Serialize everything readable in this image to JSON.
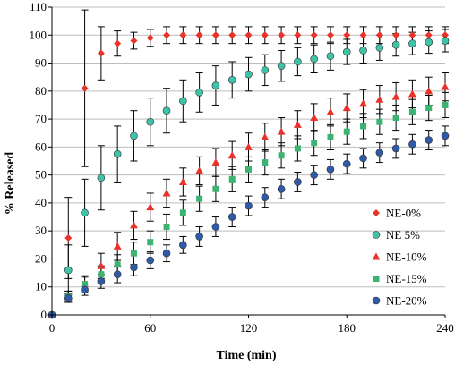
{
  "chart_data": {
    "type": "scatter",
    "xlabel": "Time (min)",
    "ylabel": "% Released",
    "xlim": [
      0,
      240
    ],
    "ylim": [
      0,
      110
    ],
    "xticks": [
      0,
      60,
      120,
      180,
      240
    ],
    "yticks": [
      0,
      10,
      20,
      30,
      40,
      50,
      60,
      70,
      80,
      90,
      100,
      110
    ],
    "grid": "horizontal",
    "legend": "bottom-right",
    "series": [
      {
        "name": "NE-0%",
        "color": "#e8322a",
        "marker": "diamond",
        "x": [
          0,
          10,
          20,
          30,
          40,
          50,
          60,
          70,
          80,
          90,
          100,
          110,
          120,
          130,
          140,
          150,
          160,
          170,
          180,
          190,
          200,
          210,
          220,
          230,
          240
        ],
        "y": [
          0,
          27.5,
          81,
          93.5,
          97,
          98,
          99,
          100,
          100,
          100,
          100,
          100,
          100,
          100,
          100,
          100,
          100,
          100,
          100,
          100,
          100,
          100,
          100,
          100,
          100
        ],
        "err": [
          0,
          14.5,
          28,
          9.5,
          4.5,
          3,
          3,
          3,
          3,
          3,
          3,
          3,
          3,
          3,
          3,
          3,
          3,
          3,
          3,
          3,
          3,
          3,
          3,
          3,
          3
        ]
      },
      {
        "name": "NE 5%",
        "color": "#3cc3a8",
        "marker": "circle",
        "x": [
          0,
          10,
          20,
          30,
          40,
          50,
          60,
          70,
          80,
          90,
          100,
          110,
          120,
          130,
          140,
          150,
          160,
          170,
          180,
          190,
          200,
          210,
          220,
          230,
          240
        ],
        "y": [
          0,
          16,
          36.5,
          49,
          57.5,
          64,
          69,
          73,
          76.5,
          79.5,
          82,
          84,
          86,
          87.5,
          89,
          90.5,
          91.5,
          92.5,
          94,
          94.5,
          95.5,
          96.5,
          97,
          97.5,
          98
        ],
        "err": [
          0,
          9,
          12,
          11.5,
          10,
          9,
          8.5,
          8,
          7.5,
          7,
          7,
          6.5,
          6,
          5.5,
          5.5,
          5,
          5,
          5,
          4.5,
          4.5,
          4.5,
          4,
          4,
          4,
          4
        ]
      },
      {
        "name": "NE-10%",
        "color": "#e8322a",
        "marker": "triangle",
        "x": [
          0,
          10,
          20,
          30,
          40,
          50,
          60,
          70,
          80,
          90,
          100,
          110,
          120,
          130,
          140,
          150,
          160,
          170,
          180,
          190,
          200,
          210,
          220,
          230,
          240
        ],
        "y": [
          0,
          6.5,
          11,
          17.5,
          24.5,
          32,
          38.5,
          43.5,
          47.5,
          51.5,
          54.5,
          57,
          60,
          63.5,
          65.5,
          68,
          70.5,
          72.5,
          74,
          75.5,
          77,
          78,
          79,
          80,
          81.5
        ],
        "err": [
          0,
          2,
          3,
          4.5,
          5,
          5,
          5,
          5,
          5,
          5,
          5,
          5,
          5,
          5,
          5,
          5,
          5,
          5,
          5,
          5,
          5,
          5,
          5,
          5,
          5
        ]
      },
      {
        "name": "NE-15%",
        "color": "#3cb371",
        "marker": "square",
        "x": [
          0,
          10,
          20,
          30,
          40,
          50,
          60,
          70,
          80,
          90,
          100,
          110,
          120,
          130,
          140,
          150,
          160,
          170,
          180,
          190,
          200,
          210,
          220,
          230,
          240
        ],
        "y": [
          0,
          6.5,
          11,
          14.5,
          18,
          22,
          26,
          31.5,
          36.5,
          41.5,
          45,
          48.5,
          52,
          54.5,
          57,
          59.5,
          61.5,
          63.5,
          65.5,
          67.5,
          69,
          70.5,
          72.5,
          74,
          75
        ],
        "err": [
          0,
          2,
          2.5,
          3,
          3.5,
          4,
          4,
          4.5,
          4.5,
          4.5,
          4.5,
          4.5,
          4.5,
          4.5,
          4.5,
          4.5,
          4.5,
          4.5,
          4.5,
          4.5,
          4.5,
          4.5,
          4.5,
          4.5,
          4.5
        ]
      },
      {
        "name": "NE-20%",
        "color": "#2e5aa8",
        "marker": "circle",
        "x": [
          0,
          10,
          20,
          30,
          40,
          50,
          60,
          70,
          80,
          90,
          100,
          110,
          120,
          130,
          140,
          150,
          160,
          170,
          180,
          190,
          200,
          210,
          220,
          230,
          240
        ],
        "y": [
          0,
          6,
          9,
          12,
          14.5,
          17,
          19.5,
          22,
          25,
          28,
          31.5,
          35,
          39,
          42,
          45,
          47.5,
          50,
          52,
          54,
          56,
          58,
          59.5,
          61,
          62.5,
          64
        ],
        "err": [
          0,
          1.5,
          2,
          2.5,
          3,
          3,
          3,
          3,
          3,
          3.5,
          3.5,
          3.5,
          3.5,
          3.5,
          3.5,
          3.5,
          3.5,
          3.5,
          3.5,
          3.5,
          3.5,
          3.5,
          3.5,
          3.5,
          3.5
        ]
      }
    ]
  }
}
